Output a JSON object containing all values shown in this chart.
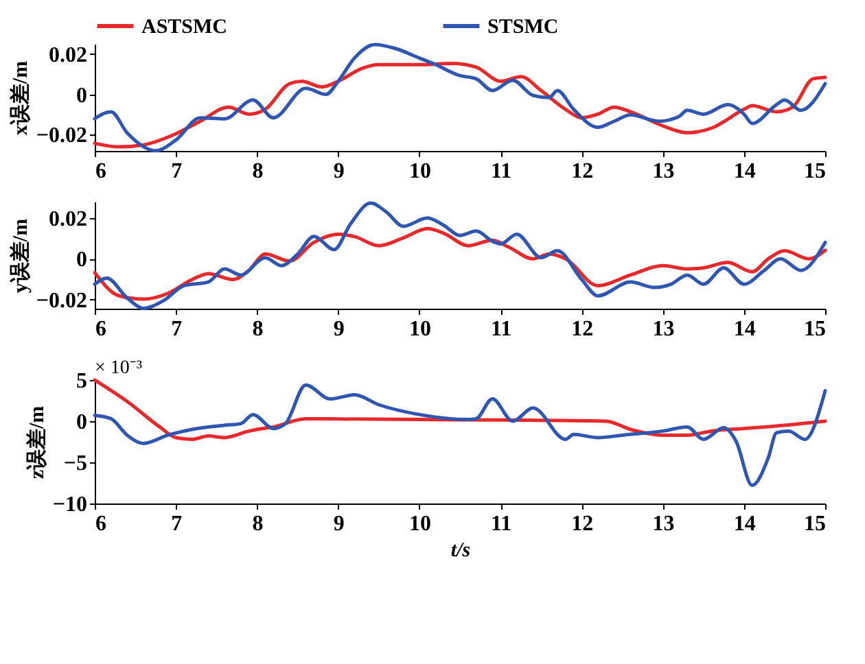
{
  "chart_data": [
    {
      "type": "line",
      "ylabel": "x误差/m",
      "legend": "top",
      "xlim": [
        6,
        15
      ],
      "xticks": [
        6,
        7,
        8,
        9,
        10,
        11,
        12,
        13,
        14,
        15
      ],
      "ylim": [
        -0.028,
        0.025
      ],
      "yticks": [
        -0.02,
        0,
        0.02
      ],
      "series": [
        {
          "name": "ASTSMC",
          "color": "#e8292b",
          "x": [
            6.0,
            6.3,
            6.6,
            7.0,
            7.3,
            7.65,
            7.9,
            8.1,
            8.4,
            8.55,
            8.8,
            9.0,
            9.3,
            9.5,
            10.0,
            10.4,
            10.7,
            11.0,
            11.25,
            11.5,
            11.8,
            12.0,
            12.2,
            12.4,
            12.6,
            13.0,
            13.3,
            13.6,
            14.0,
            14.1,
            14.4,
            14.6,
            14.85,
            15.0
          ],
          "values": [
            -0.0242,
            -0.026,
            -0.025,
            -0.0195,
            -0.0133,
            -0.0063,
            -0.0098,
            -0.0074,
            0.0053,
            0.0065,
            0.0037,
            0.0065,
            0.013,
            0.0147,
            0.0147,
            0.0153,
            0.0135,
            0.0065,
            0.0088,
            0.0019,
            -0.0074,
            -0.0116,
            -0.0098,
            -0.0063,
            -0.0086,
            -0.0156,
            -0.019,
            -0.0167,
            -0.0074,
            -0.0056,
            -0.0086,
            -0.0063,
            0.0077,
            0.0084
          ]
        },
        {
          "name": "STSMC",
          "color": "#2f56b0",
          "x": [
            6.0,
            6.2,
            6.4,
            6.75,
            7.0,
            7.3,
            7.6,
            7.95,
            8.2,
            8.6,
            8.85,
            9.0,
            9.2,
            9.45,
            9.7,
            10.0,
            10.2,
            10.5,
            10.7,
            10.9,
            11.15,
            11.4,
            11.6,
            11.7,
            11.9,
            12.2,
            12.4,
            12.6,
            12.95,
            13.2,
            13.3,
            13.5,
            13.8,
            14.0,
            14.1,
            14.4,
            14.5,
            14.7,
            15.0
          ],
          "values": [
            -0.0121,
            -0.0086,
            -0.0191,
            -0.0279,
            -0.0226,
            -0.0116,
            -0.0121,
            -0.0028,
            -0.0116,
            0.003,
            0,
            0.0065,
            0.018,
            0.0247,
            0.0228,
            0.018,
            0.0147,
            0.0093,
            0.0077,
            0.0019,
            0.007,
            -0.0005,
            -0.0016,
            0.0019,
            -0.0074,
            -0.0163,
            -0.0133,
            -0.0102,
            -0.0133,
            -0.0109,
            -0.0079,
            -0.0098,
            -0.0051,
            -0.0098,
            -0.0144,
            -0.0051,
            -0.0028,
            -0.0079,
            0.0053
          ]
        }
      ]
    },
    {
      "type": "line",
      "ylabel": "y误差/m",
      "xlim": [
        6,
        15
      ],
      "xticks": [
        6,
        7,
        8,
        9,
        10,
        11,
        12,
        13,
        14,
        15
      ],
      "ylim": [
        -0.0245,
        0.028
      ],
      "yticks": [
        -0.02,
        0,
        0.02
      ],
      "series": [
        {
          "color": "#e8292b",
          "x": [
            6.0,
            6.3,
            6.6,
            6.9,
            7.2,
            7.4,
            7.7,
            7.9,
            8.1,
            8.4,
            8.7,
            9.0,
            9.2,
            9.5,
            9.8,
            10.1,
            10.3,
            10.6,
            10.9,
            11.1,
            11.4,
            11.6,
            11.8,
            12.2,
            12.6,
            13.0,
            13.3,
            13.5,
            13.8,
            14.1,
            14.3,
            14.5,
            14.8,
            15.0
          ],
          "values": [
            -0.0068,
            -0.0182,
            -0.0198,
            -0.017,
            -0.0102,
            -0.0073,
            -0.0102,
            -0.0057,
            0.0023,
            -0.0011,
            0.008,
            0.012,
            0.0109,
            0.0064,
            0.0102,
            0.0148,
            0.0125,
            0.0064,
            0.0091,
            0.0057,
            0,
            0.0023,
            0,
            -0.0132,
            -0.008,
            -0.0034,
            -0.005,
            -0.0045,
            -0.0018,
            -0.0064,
            0,
            0.0039,
            0,
            0.0041
          ]
        },
        {
          "color": "#2f56b0",
          "x": [
            6.0,
            6.15,
            6.4,
            6.6,
            6.85,
            7.1,
            7.4,
            7.6,
            7.8,
            8.1,
            8.3,
            8.5,
            8.7,
            8.95,
            9.15,
            9.4,
            9.6,
            9.8,
            10.1,
            10.3,
            10.5,
            10.7,
            10.9,
            11.0,
            11.2,
            11.5,
            11.7,
            12.0,
            12.2,
            12.6,
            12.9,
            13.1,
            13.3,
            13.5,
            13.75,
            14.0,
            14.25,
            14.45,
            14.7,
            15.0
          ],
          "values": [
            -0.0125,
            -0.0095,
            -0.0193,
            -0.0243,
            -0.0205,
            -0.0132,
            -0.0114,
            -0.005,
            -0.008,
            0.0005,
            -0.0034,
            0.0023,
            0.0109,
            0.0045,
            0.017,
            0.0273,
            0.0227,
            0.0159,
            0.02,
            0.0164,
            0.0114,
            0.0136,
            0.0086,
            0.0073,
            0.012,
            0.0005,
            0.0039,
            -0.0102,
            -0.0182,
            -0.0114,
            -0.0141,
            -0.0125,
            -0.008,
            -0.0125,
            -0.0045,
            -0.0125,
            -0.0057,
            0,
            -0.0057,
            0.008
          ]
        }
      ]
    },
    {
      "type": "line",
      "ylabel": "z误差/m",
      "xlabel": "t/s",
      "annotations": [
        "× 10⁻³"
      ],
      "xlim": [
        6,
        15
      ],
      "xticks": [
        6,
        7,
        8,
        9,
        10,
        11,
        12,
        13,
        14,
        15
      ],
      "ylim": [
        -10,
        5
      ],
      "yticks": [
        -10,
        -5,
        0,
        5
      ],
      "series": [
        {
          "color": "#e8292b",
          "x": [
            6.0,
            6.4,
            6.8,
            7.0,
            7.2,
            7.4,
            7.6,
            7.9,
            8.0,
            8.2,
            8.6,
            9.0,
            10.0,
            11.0,
            12.3,
            12.6,
            13.0,
            13.3,
            13.6,
            14.0,
            14.5,
            15.0
          ],
          "values": [
            5,
            2.4,
            -0.7,
            -2.0,
            -2.2,
            -1.8,
            -2.0,
            -1.2,
            -1.0,
            -0.7,
            0.3,
            0.27,
            0.2,
            0.14,
            0,
            -1.0,
            -1.7,
            -1.7,
            -1.2,
            -0.9,
            -0.5,
            0
          ]
        },
        {
          "color": "#2f56b0",
          "x": [
            6.0,
            6.2,
            6.4,
            6.6,
            6.9,
            7.2,
            7.6,
            7.8,
            7.95,
            8.2,
            8.35,
            8.6,
            8.9,
            9.2,
            9.5,
            10.0,
            10.6,
            10.7,
            10.9,
            11.15,
            11.4,
            11.8,
            11.9,
            12.2,
            12.5,
            13.0,
            13.3,
            13.5,
            13.75,
            13.9,
            14.1,
            14.3,
            14.4,
            14.55,
            14.75,
            15.0
          ],
          "values": [
            0.7,
            0.3,
            -1.7,
            -2.7,
            -1.7,
            -1.0,
            -0.5,
            -0.3,
            0.8,
            -0.9,
            -0.3,
            4.4,
            2.7,
            3.2,
            2.0,
            0.8,
            0.2,
            0.3,
            2.7,
            0,
            1.6,
            -2.2,
            -1.6,
            -2.0,
            -1.7,
            -1.2,
            -0.7,
            -2.2,
            -0.8,
            -2.4,
            -7.8,
            -4.4,
            -1.4,
            -1.2,
            -2.2,
            3.7
          ]
        }
      ]
    }
  ]
}
